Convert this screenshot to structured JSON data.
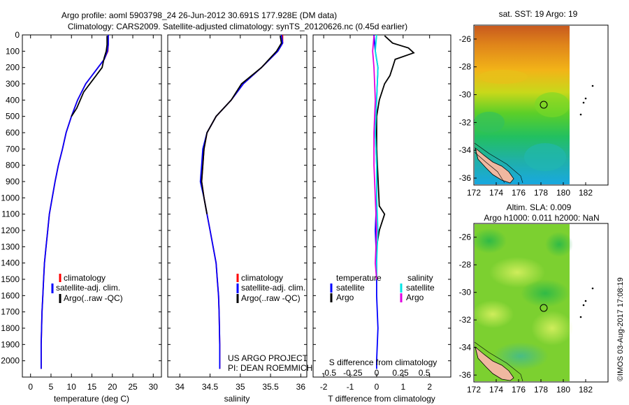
{
  "title_line1": "Argo profile: aoml 5903798_24 26-Jun-2012 30.691S 177.928E (DM data)",
  "title_line2": "Climatology: CARS2009. Satellite-adjusted climatology: synTS_20120626.nc (0.45d earlier)",
  "sst_map_title": "sat. SST: 19 Argo: 19",
  "sla_map_title1": "Altim. SLA: 0.009",
  "sla_map_title2": "Argo h1000: 0.011 h2000: NaN",
  "footer_credit": "©IMOS 03-Aug-2017 17:08:19",
  "project_line1": "US ARGO PROJECT",
  "project_line2": "PI: DEAN ROEMMICH",
  "legend": {
    "climatology": "climatology",
    "satellite": "satellite-adj. clim.",
    "argo": "Argo(..raw -QC)"
  },
  "diff_legend": {
    "temperature": "temperature",
    "salinity": "salinity",
    "satellite": "satellite",
    "argo": "Argo"
  },
  "colors": {
    "climatology": "#ff0000",
    "satellite": "#0000ff",
    "argo": "#000000",
    "s_satellite": "#00e5e5",
    "s_argo": "#e000e0"
  },
  "chart_data": [
    {
      "type": "line",
      "xlabel": "temperature (deg C)",
      "ylabel": "",
      "xlim": [
        -2,
        32
      ],
      "ylim": [
        2100,
        0
      ],
      "xticks": [
        0,
        5,
        10,
        15,
        20,
        25,
        30
      ],
      "yticks": [
        0,
        100,
        200,
        300,
        400,
        500,
        600,
        700,
        800,
        900,
        1000,
        1100,
        1200,
        1300,
        1400,
        1500,
        1600,
        1700,
        1800,
        1900,
        2000
      ],
      "series": [
        {
          "name": "climatology",
          "color": "#ff0000",
          "x": [
            19,
            19,
            18.9,
            18,
            16.5,
            13.5,
            11.5,
            10,
            8.7,
            7.8,
            6.8,
            6,
            5.3,
            4.6,
            4.2,
            3.8,
            3.4,
            3.2,
            3,
            2.8,
            2.7,
            2.6,
            2.6
          ],
          "y": [
            0,
            60,
            100,
            150,
            200,
            300,
            400,
            500,
            600,
            700,
            800,
            900,
            1000,
            1100,
            1200,
            1300,
            1400,
            1500,
            1600,
            1700,
            1800,
            1900,
            2050
          ]
        },
        {
          "name": "satellite-adj. clim.",
          "color": "#0000ff",
          "x": [
            19,
            19,
            18.8,
            18,
            16.5,
            13.5,
            11.5,
            10,
            8.7,
            7.8,
            6.8,
            6,
            5.3,
            4.6,
            4.2,
            3.8,
            3.4,
            3.2,
            3,
            2.8,
            2.7,
            2.6,
            2.6
          ],
          "y": [
            0,
            60,
            100,
            150,
            200,
            300,
            400,
            500,
            600,
            700,
            800,
            900,
            1000,
            1100,
            1200,
            1300,
            1400,
            1500,
            1600,
            1700,
            1800,
            1900,
            2050
          ]
        },
        {
          "name": "Argo(..raw -QC)",
          "color": "#000000",
          "x": [
            18.7,
            18.7,
            18.5,
            18,
            17.5,
            16,
            13,
            11.3,
            10
          ],
          "y": [
            5,
            60,
            100,
            140,
            200,
            250,
            350,
            450,
            500
          ]
        }
      ]
    },
    {
      "type": "line",
      "xlabel": "salinity",
      "ylabel": "",
      "xlim": [
        33.8,
        36.1
      ],
      "ylim": [
        2100,
        0
      ],
      "xticks": [
        34,
        34.5,
        35,
        35.5,
        36
      ],
      "series": [
        {
          "name": "climatology",
          "color": "#ff0000",
          "x": [
            35.7,
            35.7,
            35.62,
            35.35,
            35.05,
            34.85,
            34.6,
            34.45,
            34.4,
            34.38,
            34.36,
            34.4,
            34.45,
            34.5,
            34.55,
            34.6,
            34.62,
            34.64,
            34.65,
            34.66,
            34.66
          ],
          "y": [
            0,
            50,
            100,
            200,
            300,
            400,
            500,
            600,
            700,
            800,
            900,
            1000,
            1100,
            1200,
            1300,
            1400,
            1500,
            1600,
            1700,
            1900,
            2050
          ]
        },
        {
          "name": "satellite-adj. clim.",
          "color": "#0000ff",
          "x": [
            35.68,
            35.7,
            35.62,
            35.35,
            35.05,
            34.85,
            34.6,
            34.45,
            34.38,
            34.36,
            34.34,
            34.4,
            34.45,
            34.5,
            34.55,
            34.6,
            34.62,
            34.64,
            34.65,
            34.66,
            34.66
          ],
          "y": [
            0,
            50,
            100,
            200,
            300,
            400,
            500,
            600,
            700,
            800,
            900,
            1000,
            1100,
            1200,
            1300,
            1400,
            1500,
            1600,
            1700,
            1900,
            2050
          ]
        },
        {
          "name": "Argo(..raw -QC)",
          "color": "#000000",
          "x": [
            35.66,
            35.68,
            35.6,
            35.35,
            35.02,
            34.85,
            34.6,
            34.45,
            34.4,
            34.38,
            34.36,
            34.4,
            34.45
          ],
          "y": [
            5,
            50,
            100,
            200,
            300,
            400,
            500,
            600,
            700,
            800,
            900,
            1000,
            1100
          ]
        }
      ]
    },
    {
      "type": "line",
      "xlabel": "T difference from climatology",
      "xlabel2": "S difference from climatology",
      "ylabel": "",
      "xlim": [
        -2.4,
        2.8
      ],
      "ylim": [
        2100,
        0
      ],
      "xticks": [
        -2,
        -1,
        0,
        1,
        2
      ],
      "xticklabels": [
        "-2",
        "-1",
        "0",
        "1",
        "2"
      ],
      "xticks2": [
        -0.5,
        -0.25,
        0,
        0.25,
        0.5
      ],
      "series": [
        {
          "name": "T satellite",
          "color": "#0000ff",
          "x": [
            -0.1,
            -0.05,
            0.05,
            0,
            -0.05,
            0,
            0,
            -0.05,
            0,
            0,
            0.05,
            0,
            0
          ],
          "y": [
            0,
            100,
            200,
            400,
            600,
            800,
            1000,
            1200,
            1400,
            1600,
            1800,
            2000,
            2050
          ]
        },
        {
          "name": "T Argo",
          "color": "#000000",
          "x": [
            0.3,
            0.6,
            1.2,
            1.4,
            0.7,
            0.6,
            0.5,
            0.3,
            0.1,
            0,
            0,
            0.1,
            0.3,
            0.2,
            0.1,
            0,
            0
          ],
          "y": [
            5,
            50,
            80,
            110,
            150,
            200,
            250,
            300,
            400,
            500,
            700,
            1050,
            1100,
            1150,
            1200,
            1300,
            1350
          ]
        },
        {
          "name": "S satellite",
          "color": "#00e5e5",
          "x": [
            0,
            -0.05,
            0.05,
            0,
            -0.05,
            0,
            0,
            0.05,
            0,
            0
          ],
          "y": [
            0,
            100,
            200,
            400,
            600,
            800,
            1000,
            1200,
            1400,
            1500
          ]
        },
        {
          "name": "S Argo",
          "color": "#e000e0",
          "x": [
            -0.1,
            -0.15,
            -0.1,
            -0.05,
            -0.1,
            -0.1,
            -0.05,
            0,
            -0.05,
            0
          ],
          "y": [
            5,
            100,
            200,
            400,
            600,
            800,
            1000,
            1200,
            1400,
            1500
          ]
        }
      ]
    },
    {
      "type": "heatmap",
      "title": "sat. SST: 19 Argo: 19",
      "xlim": [
        172,
        184
      ],
      "ylim": [
        -36.5,
        -25
      ],
      "xticks": [
        172,
        174,
        176,
        178,
        180,
        182
      ],
      "yticks": [
        -26,
        -28,
        -30,
        -32,
        -34,
        -36
      ],
      "argo_position": [
        177.93,
        -30.69
      ]
    },
    {
      "type": "heatmap",
      "title": "Altim. SLA: 0.009",
      "xlim": [
        172,
        184
      ],
      "ylim": [
        -36.5,
        -25
      ],
      "xticks": [
        172,
        174,
        176,
        178,
        180,
        182
      ],
      "yticks": [
        -26,
        -28,
        -30,
        -32,
        -34,
        -36
      ],
      "argo_position": [
        177.93,
        -30.69
      ]
    }
  ]
}
